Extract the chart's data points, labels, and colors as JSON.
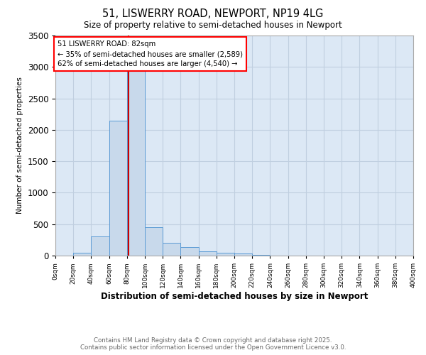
{
  "title": "51, LISWERRY ROAD, NEWPORT, NP19 4LG",
  "subtitle": "Size of property relative to semi-detached houses in Newport",
  "xlabel": "Distribution of semi-detached houses by size in Newport",
  "ylabel": "Number of semi-detached properties",
  "property_size": 82,
  "annotation_title": "51 LISWERRY ROAD: 82sqm",
  "annotation_line1": "← 35% of semi-detached houses are smaller (2,589)",
  "annotation_line2": "62% of semi-detached houses are larger (4,540) →",
  "footer_line1": "Contains HM Land Registry data © Crown copyright and database right 2025.",
  "footer_line2": "Contains public sector information licensed under the Open Government Licence v3.0.",
  "bin_edges": [
    0,
    20,
    40,
    60,
    80,
    100,
    120,
    140,
    160,
    180,
    200,
    220,
    240,
    260,
    280,
    300,
    320,
    340,
    360,
    380,
    400
  ],
  "bar_values": [
    3,
    50,
    300,
    2150,
    2950,
    450,
    200,
    130,
    70,
    50,
    30,
    15,
    5,
    2,
    1,
    0,
    0,
    0,
    0,
    0
  ],
  "bar_color": "#c8d9eb",
  "bar_edgecolor": "#5b9bd5",
  "red_line_color": "#cc0000",
  "background_color": "#ffffff",
  "plot_bg_color": "#dce8f5",
  "grid_color": "#c0cfe0",
  "ylim": [
    0,
    3500
  ],
  "yticks": [
    0,
    500,
    1000,
    1500,
    2000,
    2500,
    3000,
    3500
  ]
}
